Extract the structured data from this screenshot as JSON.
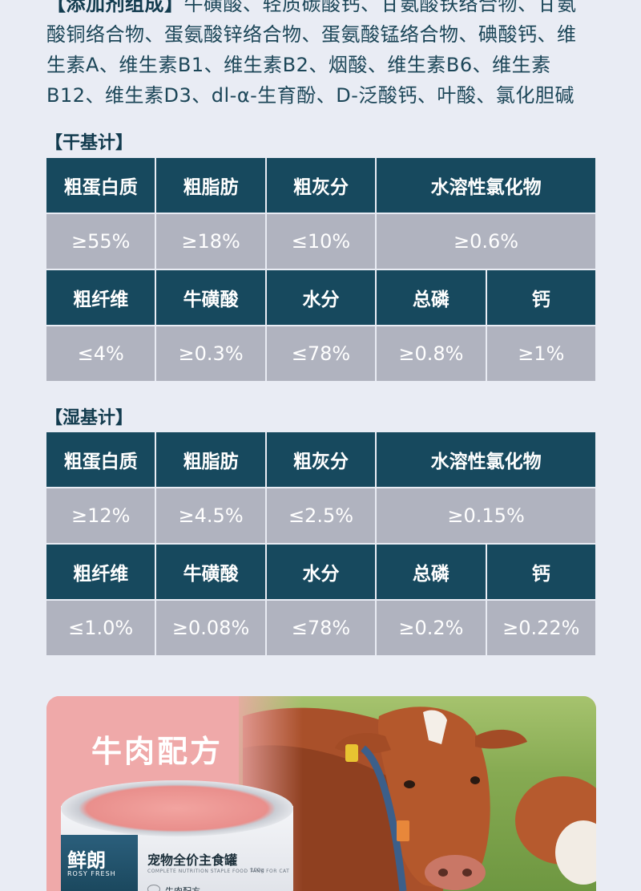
{
  "ingredients": {
    "line1_label": "【添加剂组成】",
    "line1_rest": "牛磺酸、轻质碳酸钙、甘氨酸铁络合物、甘氨",
    "line2": "酸铜络合物、蛋氨酸锌络合物、蛋氨酸锰络合物、碘酸钙、维",
    "line3": "生素A、维生素B1、维生素B2、烟酸、维生素B6、维生素",
    "line4": "B12、维生素D3、dl-α-生育酚、D-泛酸钙、叶酸、氯化胆碱"
  },
  "dry_basis": {
    "title": "【干基计】",
    "row1_headers": [
      "粗蛋白质",
      "粗脂肪",
      "粗灰分",
      "水溶性氯化物"
    ],
    "row1_values": [
      "≥55%",
      "≥18%",
      "≤10%",
      "≥0.6%"
    ],
    "row2_headers": [
      "粗纤维",
      "牛磺酸",
      "水分",
      "总磷",
      "钙"
    ],
    "row2_values": [
      "≤4%",
      "≥0.3%",
      "≤78%",
      "≥0.8%",
      "≥1%"
    ]
  },
  "wet_basis": {
    "title": "【湿基计】",
    "row1_headers": [
      "粗蛋白质",
      "粗脂肪",
      "粗灰分",
      "水溶性氯化物"
    ],
    "row1_values": [
      "≥12%",
      "≥4.5%",
      "≤2.5%",
      "≥0.15%"
    ],
    "row2_headers": [
      "粗纤维",
      "牛磺酸",
      "水分",
      "总磷",
      "钙"
    ],
    "row2_values": [
      "≤1.0%",
      "≥0.08%",
      "≤78%",
      "≥0.2%",
      "≥0.22%"
    ]
  },
  "banner": {
    "title": "牛肉配方",
    "can_logo": "鲜朗",
    "can_logo_sub": "ROSY FRESH",
    "can_name": "宠物全价主食罐",
    "can_subtext": "COMPLETE NUTRITION STAPLE FOOD TANK FOR CAT",
    "can_weight": "100g",
    "can_flavor": "牛肉配方"
  },
  "colors": {
    "background": "#e9ecf4",
    "header_cell": "#17495e",
    "value_cell": "#b0b3bf",
    "text_dark": "#1c4658",
    "banner_pink": "#efa9a9"
  }
}
